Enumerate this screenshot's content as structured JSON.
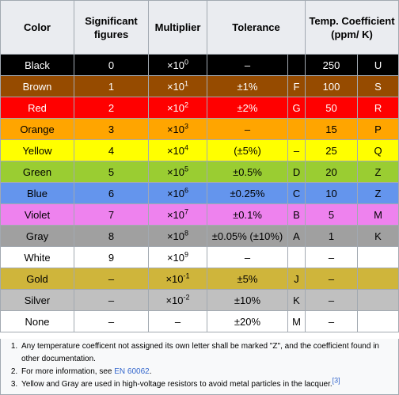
{
  "header": {
    "color": "Color",
    "significant": "Significant figures",
    "multiplier": "Multiplier",
    "tolerance": "Tolerance",
    "temp": "Temp. Coefficient (ppm/ K)"
  },
  "rows": [
    {
      "name": "Black",
      "digit": "0",
      "mult_base": "×10",
      "mult_exp": "0",
      "tol": "–",
      "tol_letter": "",
      "temp": "250",
      "temp_letter": "U",
      "bg": "#000000",
      "fg": "#ffffff"
    },
    {
      "name": "Brown",
      "digit": "1",
      "mult_base": "×10",
      "mult_exp": "1",
      "tol": "±1%",
      "tol_letter": "F",
      "temp": "100",
      "temp_letter": "S",
      "bg": "#964b00",
      "fg": "#ffffff"
    },
    {
      "name": "Red",
      "digit": "2",
      "mult_base": "×10",
      "mult_exp": "2",
      "tol": "±2%",
      "tol_letter": "G",
      "temp": "50",
      "temp_letter": "R",
      "bg": "#ff0000",
      "fg": "#ffffff"
    },
    {
      "name": "Orange",
      "digit": "3",
      "mult_base": "×10",
      "mult_exp": "3",
      "tol": "–",
      "tol_letter": "",
      "temp": "15",
      "temp_letter": "P",
      "bg": "#ffa500",
      "fg": "#000000"
    },
    {
      "name": "Yellow",
      "digit": "4",
      "mult_base": "×10",
      "mult_exp": "4",
      "tol": "(±5%)",
      "tol_letter": "–",
      "temp": "25",
      "temp_letter": "Q",
      "bg": "#ffff00",
      "fg": "#000000"
    },
    {
      "name": "Green",
      "digit": "5",
      "mult_base": "×10",
      "mult_exp": "5",
      "tol": "±0.5%",
      "tol_letter": "D",
      "temp": "20",
      "temp_letter": "Z",
      "bg": "#9acd32",
      "fg": "#000000"
    },
    {
      "name": "Blue",
      "digit": "6",
      "mult_base": "×10",
      "mult_exp": "6",
      "tol": "±0.25%",
      "tol_letter": "C",
      "temp": "10",
      "temp_letter": "Z",
      "bg": "#6495ed",
      "fg": "#000000"
    },
    {
      "name": "Violet",
      "digit": "7",
      "mult_base": "×10",
      "mult_exp": "7",
      "tol": "±0.1%",
      "tol_letter": "B",
      "temp": "5",
      "temp_letter": "M",
      "bg": "#ee82ee",
      "fg": "#000000"
    },
    {
      "name": "Gray",
      "digit": "8",
      "mult_base": "×10",
      "mult_exp": "8",
      "tol": "±0.05% (±10%)",
      "tol_letter": "A",
      "temp": "1",
      "temp_letter": "K",
      "bg": "#a0a0a0",
      "fg": "#000000"
    },
    {
      "name": "White",
      "digit": "9",
      "mult_base": "×10",
      "mult_exp": "9",
      "tol": "–",
      "tol_letter": "",
      "temp": "–",
      "temp_letter": "",
      "bg": "#ffffff",
      "fg": "#000000"
    },
    {
      "name": "Gold",
      "digit": "–",
      "mult_base": "×10",
      "mult_exp": "-1",
      "tol": "±5%",
      "tol_letter": "J",
      "temp": "–",
      "temp_letter": "",
      "bg": "#cfb53b",
      "fg": "#000000"
    },
    {
      "name": "Silver",
      "digit": "–",
      "mult_base": "×10",
      "mult_exp": "-2",
      "tol": "±10%",
      "tol_letter": "K",
      "temp": "–",
      "temp_letter": "",
      "bg": "#c0c0c0",
      "fg": "#000000"
    },
    {
      "name": "None",
      "digit": "–",
      "mult_base": "–",
      "mult_exp": "",
      "tol": "±20%",
      "tol_letter": "M",
      "temp": "–",
      "temp_letter": "",
      "bg": "#ffffff",
      "fg": "#000000"
    }
  ],
  "notes": {
    "n1": "Any temperature coefficent not assigned its own letter shall be marked \"Z\", and the coefficient found in other documentation.",
    "n2_text": "For more information, see ",
    "n2_link": "EN 60062",
    "n2_end": ".",
    "n3_text": "Yellow and Gray are used in high-voltage resistors to avoid metal particles in the lacquer.",
    "n3_ref": "[3]"
  },
  "colors": {
    "link": "#3366cc",
    "border": "#a2a9b1",
    "header_bg": "#eaecf0",
    "notes_bg": "#f8f9fa"
  }
}
